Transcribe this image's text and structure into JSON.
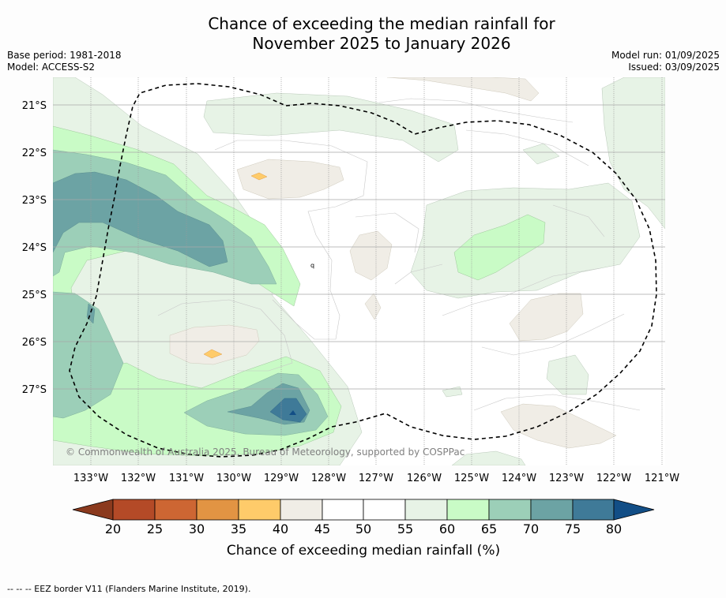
{
  "title": {
    "line1": "Chance of exceeding the median rainfall for",
    "line2": "November 2025 to January 2026"
  },
  "meta": {
    "base_period": "Base period: 1981-2018",
    "model": "Model: ACCESS-S2",
    "model_run": "Model run: 01/09/2025",
    "issued": "Issued: 03/09/2025"
  },
  "map": {
    "copyright": "© Commonwealth of Australia 2025, Bureau of Meteorology, supported by COSPPac",
    "lat_labels": [
      "21°S",
      "22°S",
      "23°S",
      "24°S",
      "25°S",
      "26°S",
      "27°S"
    ],
    "lon_labels": [
      "133°W",
      "132°W",
      "131°W",
      "130°W",
      "129°W",
      "128°W",
      "127°W",
      "126°W",
      "125°W",
      "124°W",
      "123°W",
      "122°W",
      "121°W"
    ],
    "stray_label": "q"
  },
  "legend": {
    "title": "Chance of exceeding median rainfall (%)",
    "ticks": [
      "20",
      "25",
      "30",
      "35",
      "40",
      "45",
      "50",
      "55",
      "60",
      "65",
      "70",
      "75",
      "80"
    ],
    "colors": [
      "#8b3a1e",
      "#b44a27",
      "#cd6633",
      "#e29443",
      "#fecb6a",
      "#f0ede6",
      "#ffffff",
      "#ffffff",
      "#e7f3e6",
      "#c9fbc6",
      "#9ccfb8",
      "#6ca3a4",
      "#3f7a98",
      "#124e86"
    ]
  },
  "footer": {
    "eez_note": "--  --  -- EEZ border V11 (Flanders Marine Institute, 2019)."
  }
}
